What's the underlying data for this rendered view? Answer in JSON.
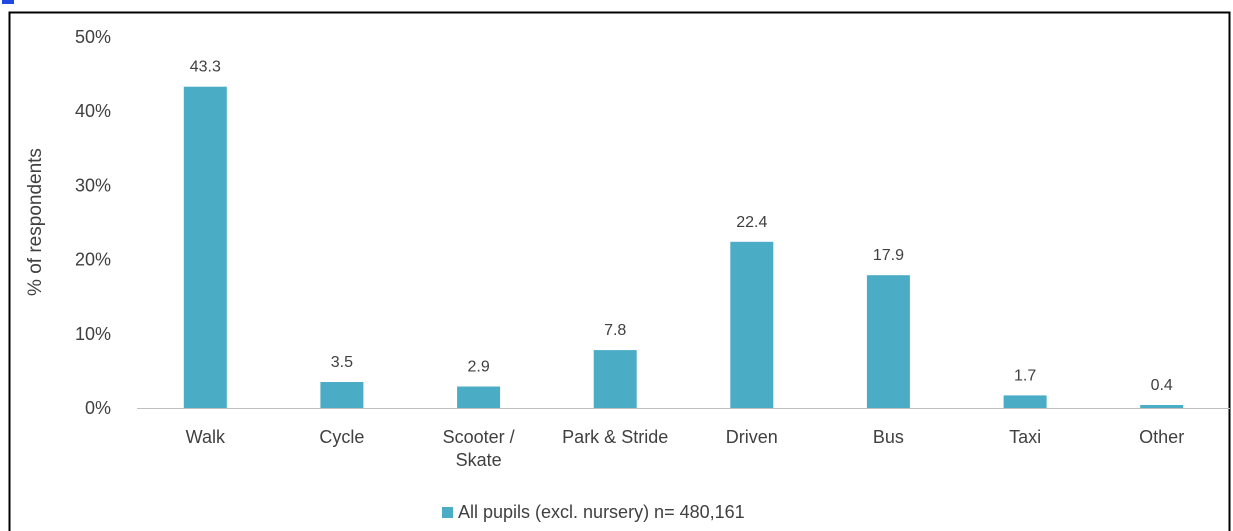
{
  "chart_data": {
    "type": "bar",
    "categories": [
      [
        "Walk"
      ],
      [
        "Cycle"
      ],
      [
        "Scooter /",
        "Skate"
      ],
      [
        "Park & Stride"
      ],
      [
        "Driven"
      ],
      [
        "Bus"
      ],
      [
        "Taxi"
      ],
      [
        "Other"
      ]
    ],
    "series": [
      {
        "name": "All pupils (excl. nursery) n= 480,161",
        "values": [
          43.3,
          3.5,
          2.9,
          7.8,
          22.4,
          17.9,
          1.7,
          0.4
        ]
      }
    ],
    "data_labels": [
      "43.3",
      "3.5",
      "2.9",
      "7.8",
      "22.4",
      "17.9",
      "1.7",
      "0.4"
    ],
    "ylabel": "% of respondents",
    "xlabel": "",
    "ylim": [
      0,
      50
    ],
    "yticks": [
      0,
      10,
      20,
      30,
      40,
      50
    ],
    "ytick_labels": [
      "0%",
      "10%",
      "20%",
      "30%",
      "40%",
      "50%"
    ],
    "grid": false,
    "legend_position": "bottom",
    "colors": {
      "bar": "#4BACC6",
      "axis": "#BFBFBF",
      "frame": "#000000",
      "top_accent": "#1F49E0"
    }
  }
}
